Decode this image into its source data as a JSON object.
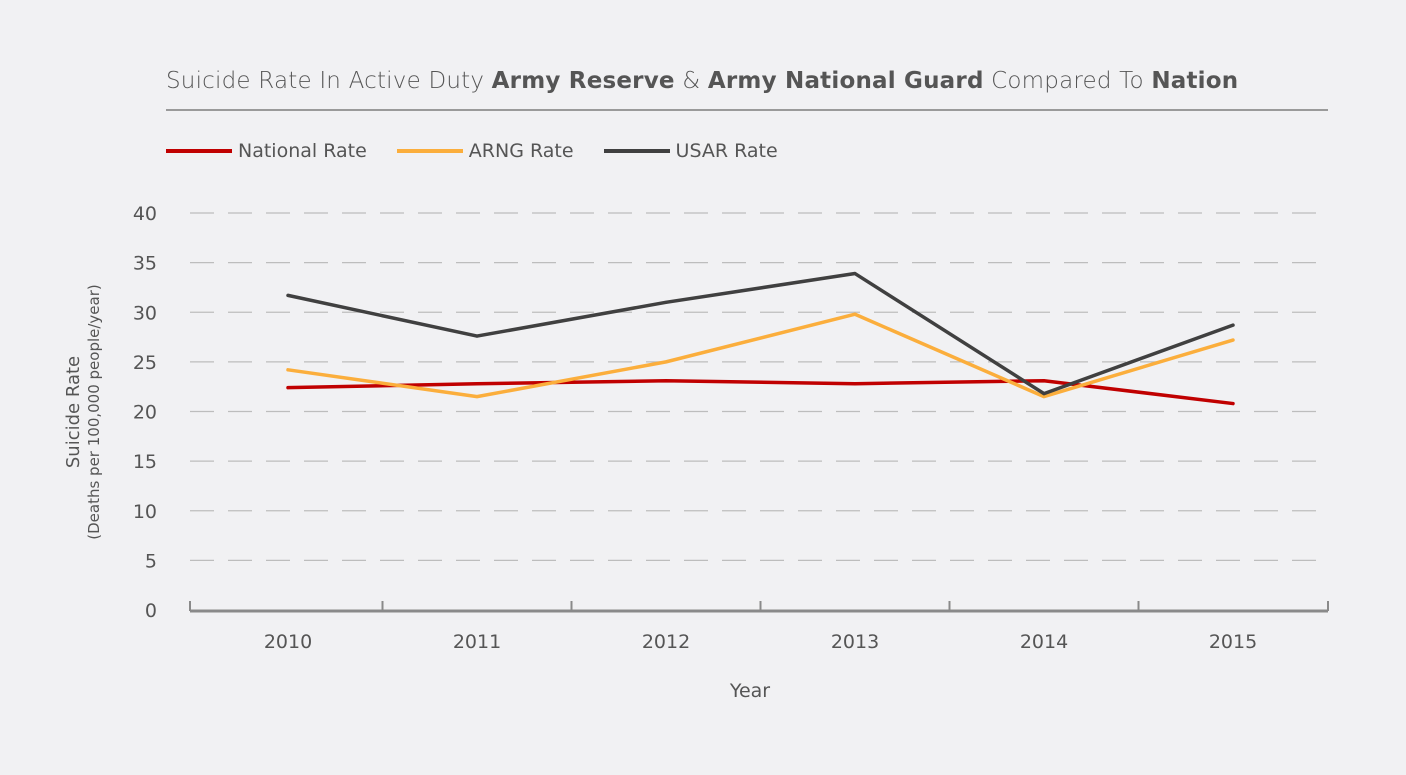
{
  "chart_data": {
    "type": "line",
    "title_parts": [
      {
        "text": "Suicide Rate In Active Duty ",
        "bold": false
      },
      {
        "text": "Army Reserve",
        "bold": true
      },
      {
        "text": " & ",
        "bold": false
      },
      {
        "text": "Army National Guard",
        "bold": true
      },
      {
        "text": " Compared To ",
        "bold": false
      },
      {
        "text": "Nation",
        "bold": true
      }
    ],
    "xlabel": "Year",
    "ylabel": "Suicide Rate",
    "ylabel_sub": "(Deaths per 100,000 people/year)",
    "categories": [
      "2010",
      "2011",
      "2012",
      "2013",
      "2014",
      "2015"
    ],
    "yticks": [
      "0",
      "5",
      "10",
      "15",
      "20",
      "25",
      "30",
      "35",
      "40"
    ],
    "ylim": [
      0,
      40
    ],
    "grid": "horizontal dashed",
    "legend_position": "top-left",
    "series": [
      {
        "name": "National Rate",
        "color": "#c00000",
        "values": [
          22.4,
          22.8,
          23.1,
          22.8,
          23.1,
          20.8
        ]
      },
      {
        "name": "ARNG Rate",
        "color": "#fbae3c",
        "values": [
          24.2,
          21.5,
          25.0,
          29.8,
          21.5,
          27.2
        ]
      },
      {
        "name": "USAR Rate",
        "color": "#404040",
        "values": [
          31.7,
          27.6,
          31.0,
          33.9,
          21.8,
          28.7
        ]
      }
    ]
  }
}
